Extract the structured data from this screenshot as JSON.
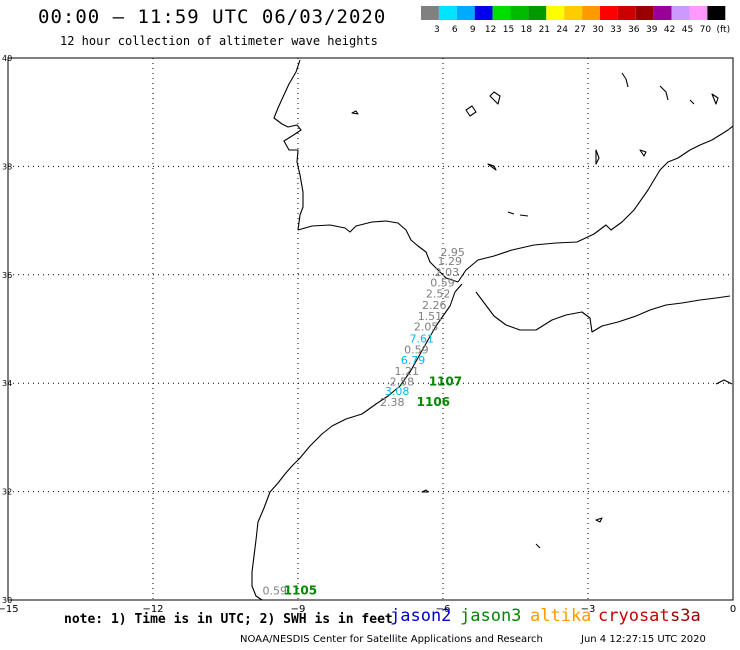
{
  "header": {
    "title": "00:00 – 11:59 UTC 06/03/2020",
    "subtitle": "12 hour collection of altimeter wave heights"
  },
  "colorbar": {
    "colors": [
      "#808080",
      "#00e5ff",
      "#00aaff",
      "#0000ee",
      "#00dd00",
      "#00bb00",
      "#009900",
      "#ffff00",
      "#ffcc00",
      "#ff9900",
      "#ff0000",
      "#cc0000",
      "#990000",
      "#990099",
      "#cc99ff",
      "#ff99ff",
      "#000000"
    ],
    "labels": [
      "3",
      "6",
      "9",
      "12",
      "15",
      "18",
      "21",
      "24",
      "27",
      "30",
      "33",
      "36",
      "39",
      "42",
      "45",
      "70",
      "(ft)"
    ]
  },
  "axes": {
    "lon_range": [
      -15,
      0
    ],
    "lat_range": [
      30,
      40
    ],
    "x_ticks": [
      "−15",
      "−12",
      "−9",
      "−6",
      "−3",
      "0"
    ],
    "y_ticks": [
      "40",
      "38",
      "36",
      "34",
      "32",
      "30"
    ]
  },
  "track": [
    {
      "lat": 36.35,
      "lon": -5.8,
      "value": "2.95",
      "color": "#808080"
    },
    {
      "lat": 36.18,
      "lon": -5.86,
      "value": "1.29",
      "color": "#808080"
    },
    {
      "lat": 35.98,
      "lon": -5.92,
      "value": "2.03",
      "color": "#808080"
    },
    {
      "lat": 35.78,
      "lon": -6.01,
      "value": "0.59",
      "color": "#808080"
    },
    {
      "lat": 35.58,
      "lon": -6.1,
      "value": "2.52",
      "color": "#808080"
    },
    {
      "lat": 35.37,
      "lon": -6.18,
      "value": "2.26",
      "color": "#808080"
    },
    {
      "lat": 35.17,
      "lon": -6.27,
      "value": "1.51",
      "color": "#808080"
    },
    {
      "lat": 34.97,
      "lon": -6.35,
      "value": "2.05",
      "color": "#808080"
    },
    {
      "lat": 34.75,
      "lon": -6.44,
      "value": "7.61",
      "color": "#00bbee"
    },
    {
      "lat": 34.55,
      "lon": -6.55,
      "value": "0.59",
      "color": "#808080"
    },
    {
      "lat": 34.35,
      "lon": -6.62,
      "value": "6.79",
      "color": "#00bbee"
    },
    {
      "lat": 34.15,
      "lon": -6.75,
      "value": "1.21",
      "color": "#808080"
    },
    {
      "lat": 33.96,
      "lon": -6.85,
      "value": "2.58",
      "color": "#808080"
    },
    {
      "lat": 33.78,
      "lon": -6.95,
      "value": "3.08",
      "color": "#00bbee"
    },
    {
      "lat": 33.58,
      "lon": -7.05,
      "value": "2.38",
      "color": "#808080"
    },
    {
      "lat": 30.1,
      "lon": -9.48,
      "value": "0.59",
      "color": "#808080"
    }
  ],
  "track_ids": [
    {
      "lat": 33.96,
      "lon": -5.95,
      "value": "1107",
      "color": "#008800"
    },
    {
      "lat": 33.58,
      "lon": -6.2,
      "value": "1106",
      "color": "#008800"
    },
    {
      "lat": 30.1,
      "lon": -8.95,
      "value": "1105",
      "color": "#008800"
    }
  ],
  "footer": {
    "note": "note: 1) Time is in UTC; 2) SWH is in feet",
    "legend": [
      {
        "label": "jason2",
        "color": "#0000cc"
      },
      {
        "label": "jason3",
        "color": "#008800"
      },
      {
        "label": "altika",
        "color": "#ff9900"
      },
      {
        "label": "cryosat",
        "color": "#cc0000"
      },
      {
        "label": "s3a",
        "color": "#990000"
      }
    ],
    "credit": "NOAA/NESDIS Center for Satellite Applications and Research",
    "timestamp": "Jun  4 12:27:15 UTC 2020"
  }
}
